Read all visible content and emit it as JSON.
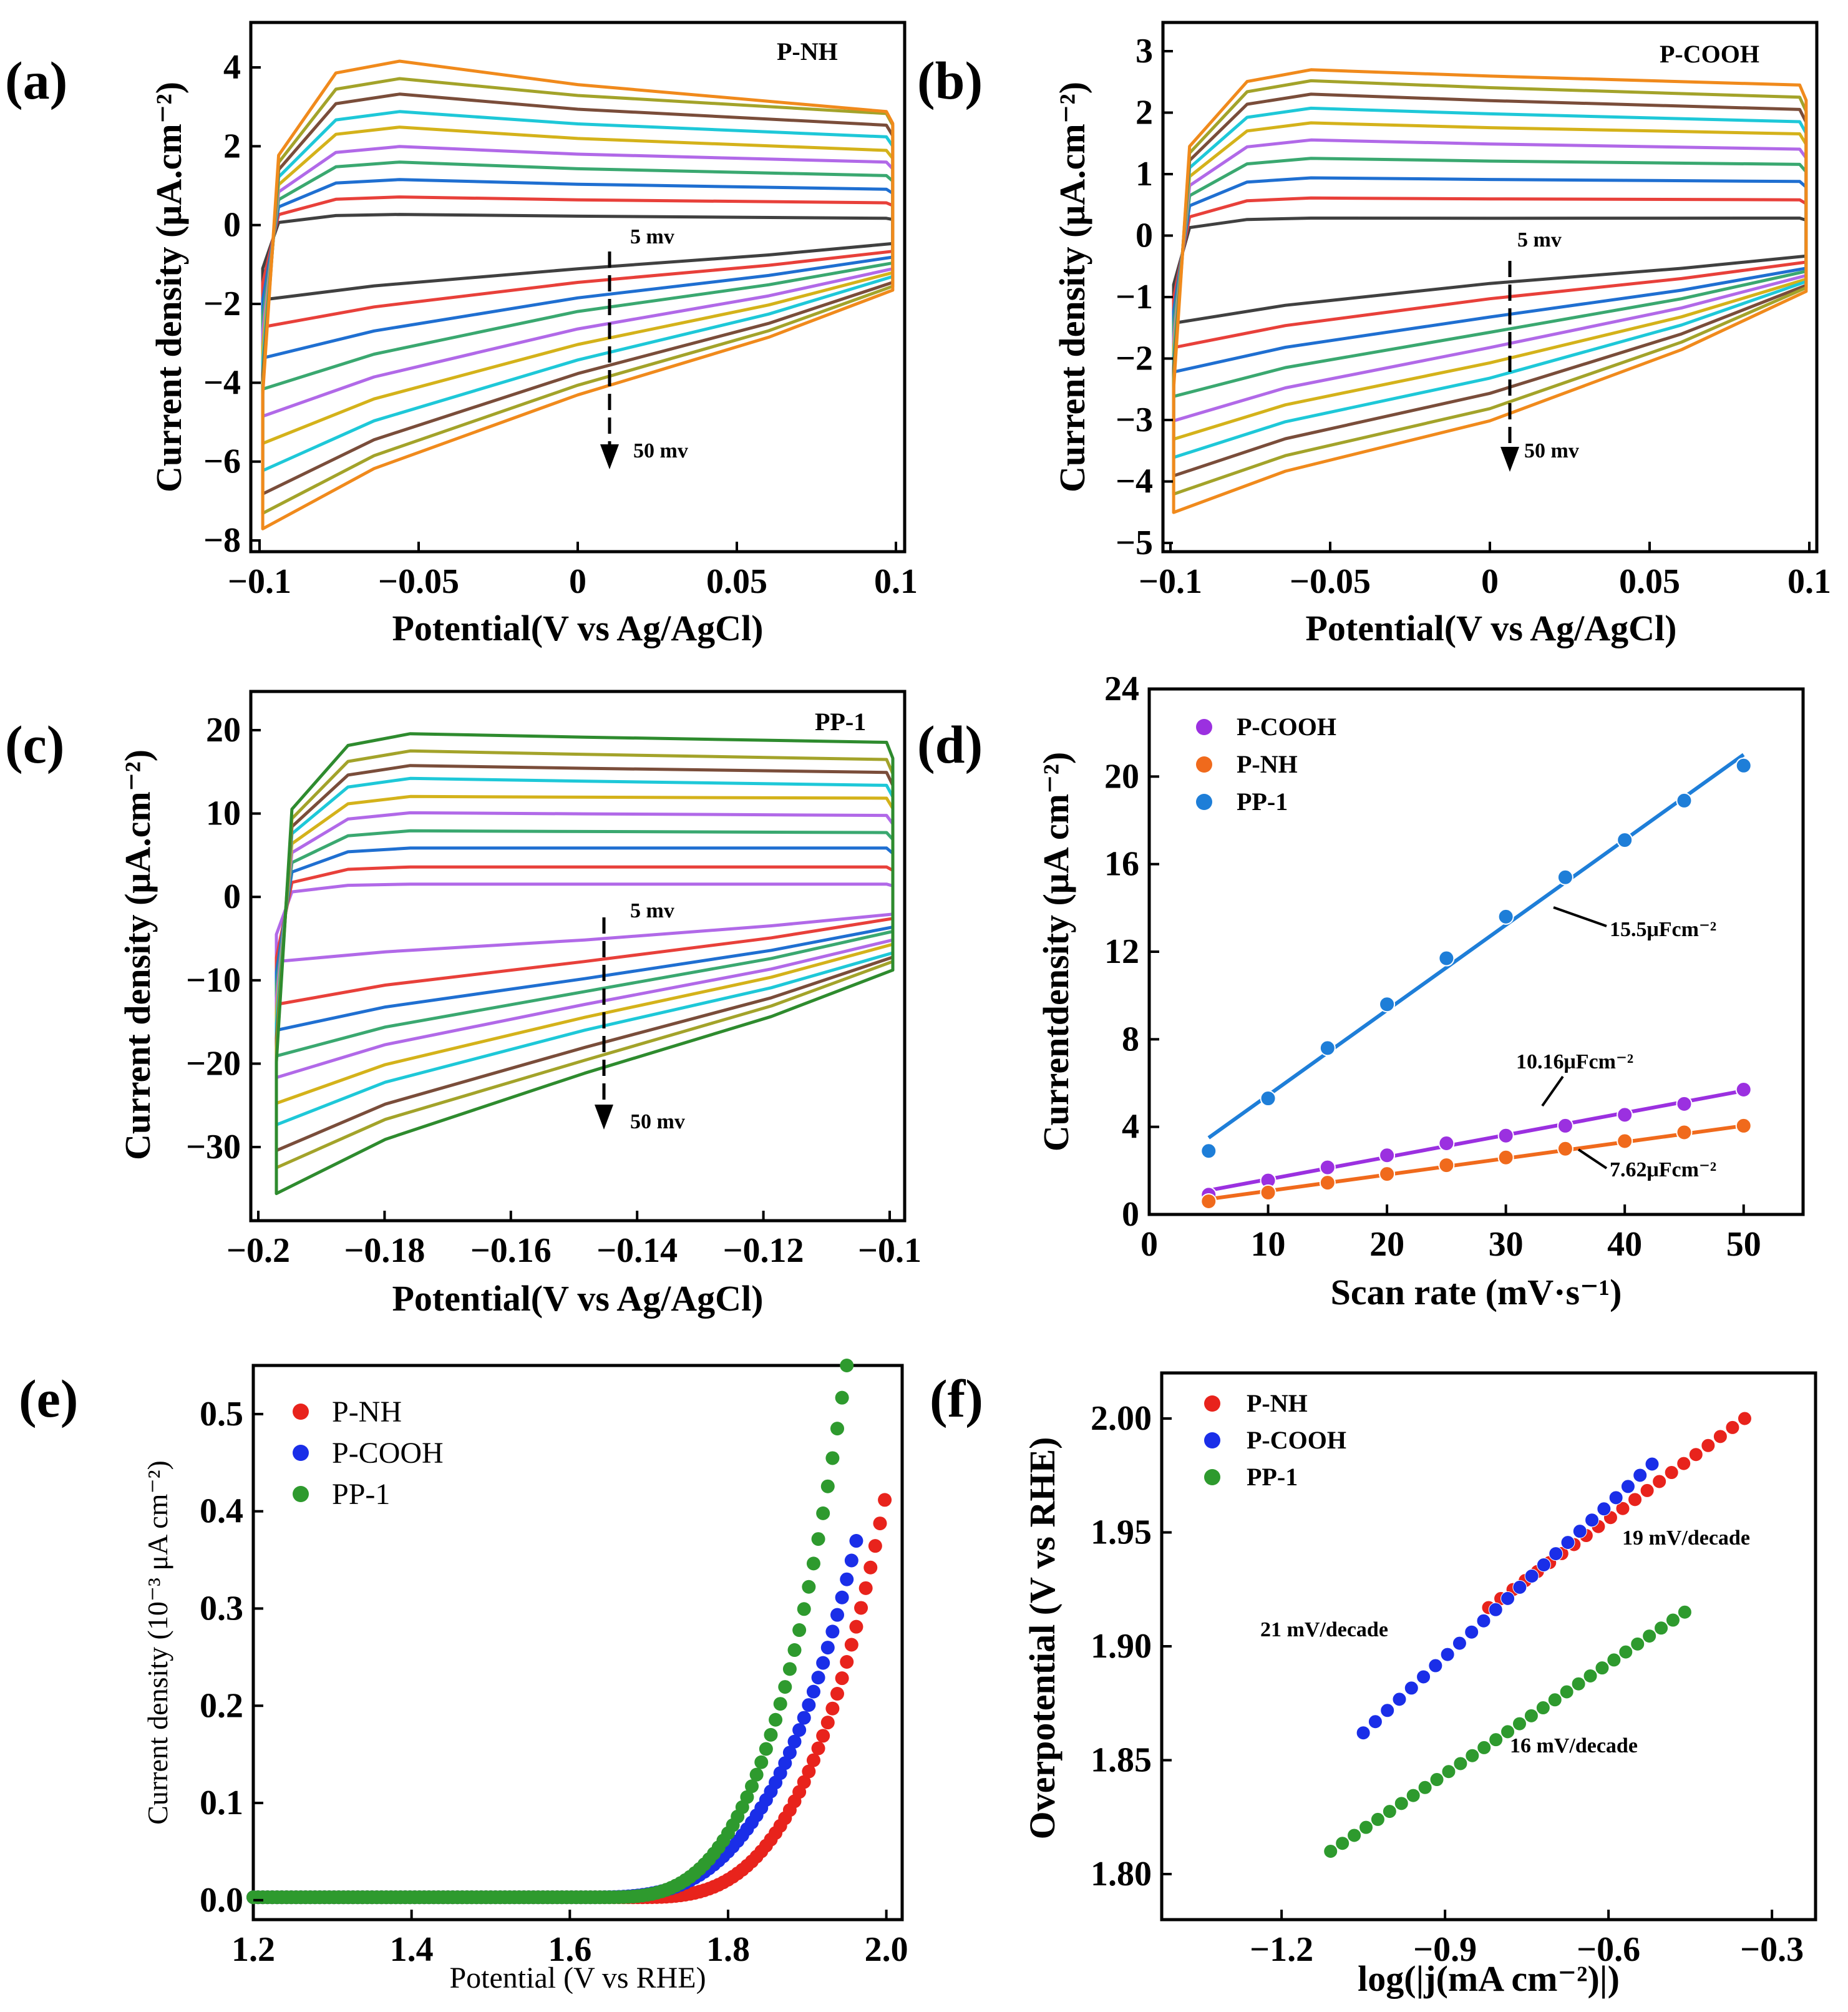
{
  "chart_data": [
    {
      "id": "a",
      "type": "line",
      "panel_label": "(a)",
      "title": "P-NH",
      "xlabel": "Potential(V vs Ag/AgCl)",
      "ylabel": "Current density (μA.cm⁻²)",
      "xlim": [
        -0.1,
        0.1
      ],
      "ylim": [
        -8,
        4.8
      ],
      "xticks": [
        "−0.1",
        "−0.05",
        "0",
        "0.05",
        "0.1"
      ],
      "yticks": [
        "−8",
        "−6",
        "−4",
        "−2",
        "0",
        "2",
        "4"
      ],
      "annotations": [
        "5 mv",
        "50 mv"
      ],
      "scan_rates_mv": [
        5,
        10,
        15,
        20,
        25,
        30,
        35,
        40,
        45,
        50
      ],
      "series_colors": [
        "#404040",
        "#e8403a",
        "#1f6fd1",
        "#3aa870",
        "#b169e8",
        "#d4b21a",
        "#1ec8d8",
        "#7a4d3a",
        "#a3a32a",
        "#f08a1c"
      ],
      "upper_plateau": [
        0.35,
        0.72,
        1.08,
        1.42,
        1.78,
        2.12,
        2.48,
        2.82,
        3.16,
        3.5
      ],
      "upper_peak": [
        0.4,
        0.85,
        1.3,
        1.75,
        2.15,
        2.65,
        3.05,
        3.5,
        3.9,
        4.35
      ],
      "upper_end": [
        0.3,
        0.7,
        1.05,
        1.4,
        1.75,
        2.05,
        2.4,
        2.7,
        3.0,
        3.05
      ],
      "lower_start": [
        -1.8,
        -2.5,
        -3.3,
        -4.1,
        -4.8,
        -5.5,
        -6.2,
        -6.8,
        -7.3,
        -7.7
      ],
      "lower_mid": [
        -1.0,
        -1.35,
        -1.75,
        -2.1,
        -2.55,
        -2.95,
        -3.35,
        -3.7,
        -4.0,
        -4.25
      ],
      "lower_end": [
        -0.35,
        -0.55,
        -0.7,
        -0.85,
        -1.0,
        -1.1,
        -1.2,
        -1.35,
        -1.45,
        -1.55
      ]
    },
    {
      "id": "b",
      "type": "line",
      "panel_label": "(b)",
      "title": "P-COOH",
      "xlabel": "Potential(V vs Ag/AgCl)",
      "ylabel": "Current density (μA.cm⁻²)",
      "xlim": [
        -0.1,
        0.1
      ],
      "ylim": [
        -5,
        3.3
      ],
      "xticks": [
        "−0.1",
        "−0.05",
        "0",
        "0.05",
        "0.1"
      ],
      "yticks": [
        "−5",
        "−4",
        "−3",
        "−2",
        "−1",
        "0",
        "1",
        "2",
        "3"
      ],
      "annotations": [
        "5 mv",
        "50 mv"
      ],
      "scan_rates_mv": [
        5,
        10,
        15,
        20,
        25,
        30,
        35,
        40,
        45,
        50
      ],
      "series_colors": [
        "#404040",
        "#e8403a",
        "#1f6fd1",
        "#3aa870",
        "#b169e8",
        "#d4b21a",
        "#1ec8d8",
        "#7a4d3a",
        "#a3a32a",
        "#f08a1c"
      ],
      "upper_plateau": [
        0.3,
        0.62,
        0.95,
        1.25,
        1.55,
        1.82,
        2.08,
        2.3,
        2.52,
        2.72
      ],
      "upper_peak": [
        0.32,
        0.65,
        0.98,
        1.3,
        1.6,
        1.88,
        2.12,
        2.35,
        2.57,
        2.75
      ],
      "upper_end": [
        0.32,
        0.62,
        0.92,
        1.2,
        1.45,
        1.7,
        1.9,
        2.1,
        2.3,
        2.5
      ],
      "lower_start": [
        -1.4,
        -1.8,
        -2.2,
        -2.6,
        -3.0,
        -3.3,
        -3.6,
        -3.9,
        -4.2,
        -4.5
      ],
      "lower_mid": [
        -0.75,
        -1.0,
        -1.3,
        -1.55,
        -1.8,
        -2.05,
        -2.3,
        -2.55,
        -2.8,
        -3.0
      ],
      "lower_end": [
        -0.3,
        -0.4,
        -0.5,
        -0.55,
        -0.62,
        -0.68,
        -0.72,
        -0.78,
        -0.82,
        -0.88
      ]
    },
    {
      "id": "c",
      "type": "line",
      "panel_label": "(c)",
      "title": "PP-1",
      "xlabel": "Potential(V vs Ag/AgCl)",
      "ylabel": "Current density (μA.cm⁻²)",
      "xlim": [
        -0.2,
        -0.1
      ],
      "ylim": [
        -36,
        25
      ],
      "xticks": [
        "−0.2",
        "−0.18",
        "−0.16",
        "−0.14",
        "−0.12",
        "−0.1"
      ],
      "yticks": [
        "−30",
        "−20",
        "−10",
        "0",
        "10",
        "20"
      ],
      "annotations": [
        "5 mv",
        "50 mv"
      ],
      "scan_rates_mv": [
        5,
        10,
        15,
        20,
        25,
        30,
        35,
        40,
        45,
        50
      ],
      "series_colors": [
        "#b169e8",
        "#e8403a",
        "#1f6fd1",
        "#3aa870",
        "#b169e8",
        "#d4b21a",
        "#1ec8d8",
        "#7a4d3a",
        "#a3a32a",
        "#2e8b2e"
      ],
      "upper_plateau": [
        2,
        4,
        6.2,
        8.2,
        10.3,
        12.2,
        14.3,
        15.8,
        17.5,
        19.5
      ],
      "upper_peak": [
        2,
        4,
        6.2,
        8.2,
        10.3,
        12.2,
        14.3,
        15.8,
        17.5,
        19.5
      ],
      "upper_end": [
        2,
        4,
        6.2,
        8,
        10,
        12,
        13.5,
        15,
        16.5,
        18.5
      ],
      "lower_start": [
        -7,
        -12,
        -15,
        -18,
        -20.5,
        -23.5,
        -26,
        -29,
        -31,
        -34
      ],
      "lower_mid": [
        -4.5,
        -7,
        -9,
        -10.5,
        -12,
        -13.5,
        -15,
        -17,
        -18.5,
        -20
      ],
      "lower_end": [
        -1.5,
        -2,
        -3,
        -3.5,
        -4.5,
        -5,
        -6,
        -6.5,
        -7,
        -8
      ]
    },
    {
      "id": "d",
      "type": "scatter",
      "panel_label": "(d)",
      "xlabel": "Scan rate (mV·s⁻¹)",
      "ylabel": "Currentdensity (μA cm⁻²)",
      "xlim": [
        0,
        55
      ],
      "ylim": [
        0,
        24
      ],
      "xticks": [
        "0",
        "10",
        "20",
        "30",
        "40",
        "50"
      ],
      "yticks": [
        "0",
        "4",
        "8",
        "12",
        "16",
        "20",
        "24"
      ],
      "legend": [
        "P-COOH",
        "P-NH",
        "PP-1"
      ],
      "x": [
        5,
        10,
        15,
        20,
        25,
        30,
        35,
        40,
        45,
        50
      ],
      "series": [
        {
          "name": "P-COOH",
          "color": "#9b30e0",
          "values": [
            0.9,
            1.55,
            2.15,
            2.7,
            3.25,
            3.6,
            4.05,
            4.55,
            5.05,
            5.7
          ],
          "fit": [
            1.1,
            5.65
          ]
        },
        {
          "name": "P-NH",
          "color": "#f06a1c",
          "values": [
            0.6,
            1.0,
            1.45,
            1.85,
            2.25,
            2.6,
            3.0,
            3.35,
            3.75,
            4.05
          ],
          "fit": [
            0.7,
            4.05
          ]
        },
        {
          "name": "PP-1",
          "color": "#1e7ed8",
          "values": [
            2.9,
            5.3,
            7.6,
            9.6,
            11.7,
            13.6,
            15.4,
            17.1,
            18.9,
            20.5
          ],
          "fit": [
            3.5,
            21.0
          ]
        }
      ],
      "fit_labels": [
        "15.5μFcm⁻²",
        "10.16μFcm⁻²",
        "7.62μFcm⁻²"
      ]
    },
    {
      "id": "e",
      "type": "scatter",
      "panel_label": "(e)",
      "xlabel": "Potential (V vs RHE)",
      "ylabel": "Current density (10⁻³ μA cm⁻²)",
      "xlim": [
        1.2,
        2.02
      ],
      "ylim": [
        -0.02,
        0.55
      ],
      "xticks": [
        "1.2",
        "1.4",
        "1.6",
        "1.8",
        "2.0"
      ],
      "yticks": [
        "0.0",
        "0.1",
        "0.2",
        "0.3",
        "0.4",
        "0.5"
      ],
      "legend": [
        "P-NH",
        "P-COOH",
        "PP-1"
      ],
      "series": [
        {
          "name": "P-NH",
          "color": "#e8231c",
          "onset": 1.8,
          "end_x": 2.0,
          "end_y": 0.42
        },
        {
          "name": "P-COOH",
          "color": "#1a2ee8",
          "onset": 1.74,
          "end_x": 1.965,
          "end_y": 0.38
        },
        {
          "name": "PP-1",
          "color": "#2e9a2e",
          "onset": 1.76,
          "end_x": 1.95,
          "end_y": 0.55
        }
      ]
    },
    {
      "id": "f",
      "type": "scatter",
      "panel_label": "(f)",
      "xlabel": "log(|j(mA cm⁻²)|)",
      "ylabel": "Overpotential (V vs RHE)",
      "xlim": [
        -1.42,
        -0.22
      ],
      "ylim": [
        1.78,
        2.02
      ],
      "xticks": [
        "−1.2",
        "−0.9",
        "−0.6",
        "−0.3"
      ],
      "yticks": [
        "1.80",
        "1.85",
        "1.90",
        "1.95",
        "2.00"
      ],
      "legend": [
        "P-NH",
        "P-COOH",
        "PP-1"
      ],
      "series": [
        {
          "name": "P-NH",
          "color": "#e8231c",
          "x_range": [
            -0.82,
            -0.35
          ],
          "y_range": [
            1.917,
            2.0
          ]
        },
        {
          "name": "P-COOH",
          "color": "#1a2ee8",
          "x_range": [
            -1.05,
            -0.52
          ],
          "y_range": [
            1.862,
            1.98
          ]
        },
        {
          "name": "PP-1",
          "color": "#2e9a2e",
          "x_range": [
            -1.11,
            -0.46
          ],
          "y_range": [
            1.81,
            1.915
          ]
        }
      ],
      "annotations": [
        "19 mV/decade",
        "21 mV/decade",
        "16 mV/decade"
      ]
    }
  ]
}
